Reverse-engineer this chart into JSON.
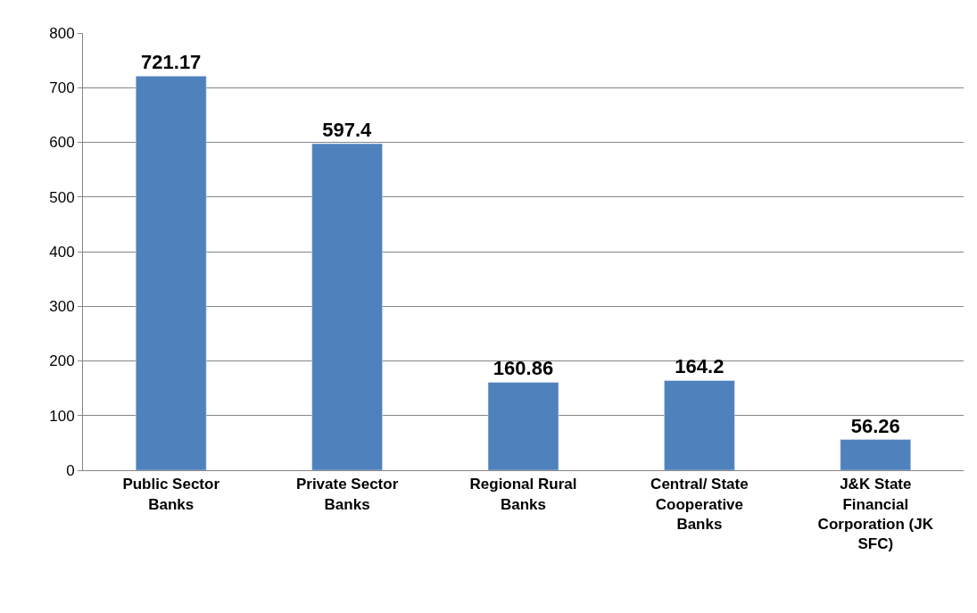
{
  "chart_data": {
    "type": "bar",
    "categories": [
      "Public Sector Banks",
      "Private Sector Banks",
      "Regional Rural Banks",
      "Central/ State Cooperative Banks",
      "J&K State Financial Corporation (JK SFC)"
    ],
    "values": [
      721.17,
      597.4,
      160.86,
      164.2,
      56.26
    ],
    "color": "#4f81bd",
    "ylim": [
      0,
      800
    ],
    "yticks": [
      0,
      100,
      200,
      300,
      400,
      500,
      600,
      700,
      800
    ],
    "grid": "y",
    "data_labels": true,
    "legend": false
  }
}
